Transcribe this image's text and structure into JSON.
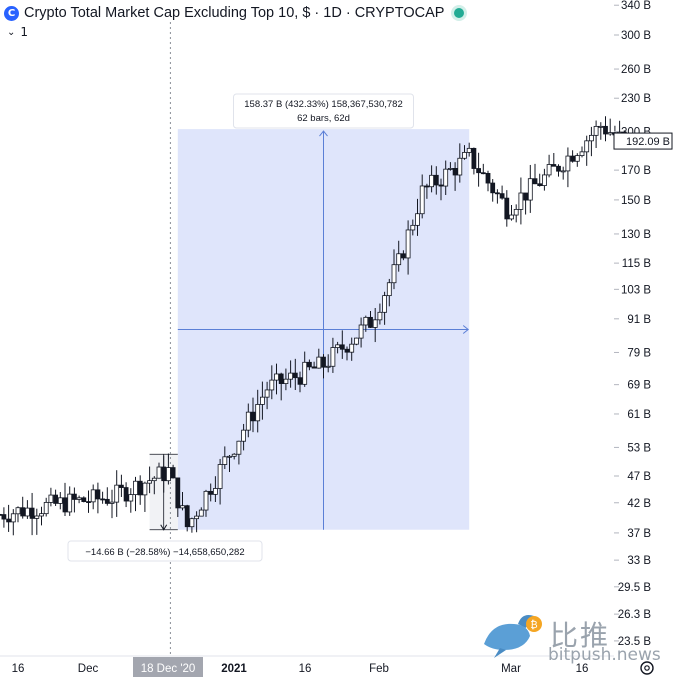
{
  "header": {
    "logo_glyph": "C",
    "title": "Crypto Total Market Cap Excluding Top 10, $ · 1D · CRYPTOCAP",
    "sub_value": "1",
    "sub_icon": "chevron-down-icon"
  },
  "colors": {
    "up": "#131722",
    "down": "#131722",
    "measure_fill": "#dfe5fb",
    "measure_line": "#5b7fd6",
    "selected_date_bg": "#a3a6af"
  },
  "chart_data": {
    "type": "candlestick",
    "y_scale": "log",
    "y_ticks": [
      "340 B",
      "300 B",
      "260 B",
      "230 B",
      "200 B",
      "170 B",
      "150 B",
      "130 B",
      "115 B",
      "103 B",
      "91 B",
      "79 B",
      "69 B",
      "61 B",
      "53 B",
      "47 B",
      "42 B",
      "37 B",
      "33 B",
      "29.5 B",
      "26.3 B",
      "23.5 B"
    ],
    "x_ticks": [
      "16",
      "Dec",
      "18 Dec '20",
      "2021",
      "16",
      "Feb",
      "Mar",
      "16"
    ],
    "last_price_label": "192.09 B",
    "series": [
      {
        "date": "2020-11-12",
        "close": 40
      },
      {
        "date": "2020-11-26",
        "close": 42
      },
      {
        "date": "2020-12-06",
        "close": 43
      },
      {
        "date": "2020-12-18",
        "close": 48
      },
      {
        "date": "2020-12-22",
        "close": 38
      },
      {
        "date": "2021-01-08",
        "close": 68
      },
      {
        "date": "2021-01-20",
        "close": 75
      },
      {
        "date": "2021-01-30",
        "close": 90
      },
      {
        "date": "2021-02-05",
        "close": 115
      },
      {
        "date": "2021-02-10",
        "close": 155
      },
      {
        "date": "2021-02-20",
        "close": 180
      },
      {
        "date": "2021-02-28",
        "close": 145
      },
      {
        "date": "2021-03-10",
        "close": 170
      },
      {
        "date": "2021-03-20",
        "close": 205
      },
      {
        "date": "2021-03-25",
        "close": 192.09
      }
    ],
    "measure_down": {
      "label": "−14.66 B (−28.58%) −14,658,650,282"
    },
    "measure_up": {
      "label_line1": "158.37 B (432.33%) 158,367,530,782",
      "label_line2": "62 bars, 62d"
    }
  },
  "watermark": {
    "cn": "比推",
    "en": "bitpush.news",
    "icon": "bird-icon"
  },
  "footer": {
    "settings_icon": "gear-icon"
  }
}
